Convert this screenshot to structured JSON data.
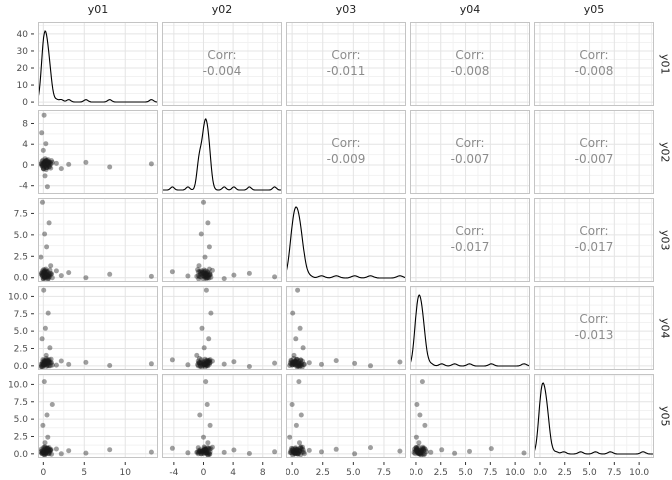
{
  "chart_data": {
    "type": "scatter_matrix",
    "diagonal": "density",
    "upper": "correlation_text",
    "lower": "scatter",
    "corr_label": "Corr:",
    "variables": [
      "y01",
      "y02",
      "y03",
      "y04",
      "y05"
    ],
    "cols": [
      {
        "name": "y01",
        "range": [
          -0.65,
          14.0
        ],
        "ticks": [
          {
            "v": 0,
            "label": "0"
          },
          {
            "v": 5,
            "label": "5"
          },
          {
            "v": 10,
            "label": "10"
          }
        ]
      },
      {
        "name": "y02",
        "range": [
          -5.6,
          10.6
        ],
        "ticks": [
          {
            "v": -4,
            "label": "-4"
          },
          {
            "v": 0,
            "label": "0"
          },
          {
            "v": 4,
            "label": "4"
          },
          {
            "v": 8,
            "label": "8"
          }
        ]
      },
      {
        "name": "y03",
        "range": [
          -0.5,
          9.3
        ],
        "ticks": [
          {
            "v": 0,
            "label": "0.0"
          },
          {
            "v": 2.5,
            "label": "2.5"
          },
          {
            "v": 5,
            "label": "5.0"
          },
          {
            "v": 7.5,
            "label": "7.5"
          }
        ]
      },
      {
        "name": "y04",
        "range": [
          -0.6,
          11.5
        ],
        "ticks": [
          {
            "v": 0,
            "label": "0.0"
          },
          {
            "v": 2.5,
            "label": "2.5"
          },
          {
            "v": 5,
            "label": "5.0"
          },
          {
            "v": 7.5,
            "label": "7.5"
          },
          {
            "v": 10,
            "label": "10.0"
          }
        ]
      },
      {
        "name": "y05",
        "range": [
          -0.6,
          11.5
        ],
        "ticks": [
          {
            "v": 0,
            "label": "0.0"
          },
          {
            "v": 2.5,
            "label": "2.5"
          },
          {
            "v": 5,
            "label": "5.0"
          },
          {
            "v": 7.5,
            "label": "7.5"
          },
          {
            "v": 10,
            "label": "10.0"
          }
        ]
      }
    ],
    "rows": [
      {
        "name": "y01",
        "range": [
          -2.3,
          47.0
        ],
        "ticks": [
          {
            "v": 0,
            "label": "0"
          },
          {
            "v": 10,
            "label": "10"
          },
          {
            "v": 20,
            "label": "20"
          },
          {
            "v": 30,
            "label": "30"
          },
          {
            "v": 40,
            "label": "40"
          }
        ]
      },
      {
        "name": "y02",
        "range": [
          -5.6,
          10.6
        ],
        "ticks": [
          {
            "v": -4,
            "label": "-4"
          },
          {
            "v": 0,
            "label": "0"
          },
          {
            "v": 4,
            "label": "4"
          },
          {
            "v": 8,
            "label": "8"
          }
        ]
      },
      {
        "name": "y03",
        "range": [
          -0.5,
          9.3
        ],
        "ticks": [
          {
            "v": 0,
            "label": "0.0"
          },
          {
            "v": 2.5,
            "label": "2.5"
          },
          {
            "v": 5,
            "label": "5.0"
          },
          {
            "v": 7.5,
            "label": "7.5"
          }
        ]
      },
      {
        "name": "y04",
        "range": [
          -0.6,
          11.5
        ],
        "ticks": [
          {
            "v": 0,
            "label": "0.0"
          },
          {
            "v": 2.5,
            "label": "2.5"
          },
          {
            "v": 5,
            "label": "5.0"
          },
          {
            "v": 7.5,
            "label": "7.5"
          },
          {
            "v": 10,
            "label": "10.0"
          }
        ]
      },
      {
        "name": "y05",
        "range": [
          -0.6,
          11.5
        ],
        "ticks": [
          {
            "v": 0,
            "label": "0.0"
          },
          {
            "v": 2.5,
            "label": "2.5"
          },
          {
            "v": 5,
            "label": "5.0"
          },
          {
            "v": 7.5,
            "label": "7.5"
          },
          {
            "v": 10,
            "label": "10.0"
          }
        ]
      }
    ],
    "correlations": [
      {
        "row": 0,
        "col": 1,
        "value": "-0.004"
      },
      {
        "row": 0,
        "col": 2,
        "value": "-0.011"
      },
      {
        "row": 0,
        "col": 3,
        "value": "-0.008"
      },
      {
        "row": 0,
        "col": 4,
        "value": "-0.008"
      },
      {
        "row": 1,
        "col": 2,
        "value": "-0.009"
      },
      {
        "row": 1,
        "col": 3,
        "value": "-0.007"
      },
      {
        "row": 1,
        "col": 4,
        "value": "-0.007"
      },
      {
        "row": 2,
        "col": 3,
        "value": "-0.017"
      },
      {
        "row": 2,
        "col": 4,
        "value": "-0.017"
      },
      {
        "row": 3,
        "col": 4,
        "value": "-0.013"
      }
    ],
    "values": {
      "y01": [
        13.2,
        8.1,
        5.2,
        3.1,
        2.2,
        1.6,
        0.1,
        -0.2,
        0.3,
        0.0,
        0.5,
        0.2,
        -0.1,
        0.7,
        0.15,
        0.4,
        -0.3,
        0.9,
        0.05,
        0.6,
        0.25,
        -0.15,
        0.8,
        0.35,
        0.12,
        1.1,
        0.45,
        -0.05,
        0.55,
        0.2,
        0.65,
        0.3,
        -0.25,
        0.75,
        0.1,
        0.5,
        0.0,
        0.85,
        0.22,
        -0.12,
        0.4,
        0.18,
        0.95,
        0.05,
        0.6,
        0.28,
        -0.18,
        0.7,
        0.15,
        0.38,
        1.0,
        0.08,
        -0.08,
        0.52,
        0.32,
        0.62,
        0.02,
        0.42,
        0.12,
        0.72
      ],
      "y02": [
        0.2,
        -0.4,
        0.5,
        0.1,
        -0.7,
        0.3,
        9.6,
        6.2,
        4.1,
        2.8,
        -4.2,
        -2.1,
        0.0,
        0.6,
        -0.3,
        0.8,
        0.2,
        -0.6,
        0.4,
        1.0,
        -0.2,
        0.7,
        0.1,
        -0.9,
        0.3,
        0.5,
        -0.5,
        0.9,
        0.0,
        0.6,
        -0.1,
        0.8,
        0.25,
        -0.35,
        0.55,
        0.15,
        -0.65,
        0.45,
        1.2,
        0.05,
        -0.45,
        0.65,
        0.2,
        -0.8,
        0.35,
        0.75,
        -0.15,
        0.5,
        0.1,
        -0.55,
        0.85,
        0.3,
        -0.25,
        0.6,
        0.0,
        0.4,
        -0.7,
        0.9,
        0.15,
        -0.3
      ],
      "y03": [
        0.15,
        0.4,
        0.0,
        0.6,
        0.25,
        0.8,
        0.1,
        0.5,
        0.3,
        -0.1,
        0.7,
        0.2,
        8.8,
        6.4,
        5.1,
        3.6,
        2.4,
        1.4,
        0.45,
        0.05,
        0.65,
        0.3,
        0.9,
        0.15,
        0.55,
        0.0,
        0.75,
        0.35,
        -0.2,
        0.6,
        0.2,
        1.0,
        0.4,
        0.1,
        0.7,
        0.28,
        -0.15,
        0.5,
        0.85,
        0.22,
        0.62,
        0.05,
        0.38,
        0.95,
        0.18,
        -0.05,
        0.58,
        0.32,
        0.72,
        0.12,
        0.48,
        0.02,
        0.82,
        0.25,
        0.52,
        -0.1,
        0.68,
        0.35,
        0.08,
        0.42
      ],
      "y04": [
        0.3,
        0.05,
        0.5,
        0.2,
        0.7,
        0.1,
        0.4,
        -0.1,
        0.6,
        0.25,
        0.85,
        0.15,
        0.55,
        0.0,
        0.35,
        0.75,
        0.2,
        0.45,
        10.9,
        7.6,
        5.4,
        3.9,
        2.6,
        1.5,
        0.65,
        0.1,
        0.4,
        0.9,
        0.05,
        0.3,
        0.6,
        0.22,
        -0.15,
        0.5,
        0.8,
        0.12,
        0.42,
        0.02,
        0.68,
        0.28,
        -0.08,
        0.52,
        0.95,
        0.18,
        0.38,
        0.72,
        0.08,
        0.58,
        0.25,
        1.05,
        0.45,
        0.15,
        -0.2,
        0.62,
        0.32,
        0.78,
        0.0,
        0.48,
        0.2,
        0.88
      ],
      "y05": [
        0.25,
        0.6,
        0.1,
        0.45,
        0.0,
        0.7,
        0.3,
        0.05,
        0.55,
        0.2,
        0.8,
        0.15,
        0.4,
        0.9,
        0.0,
        0.65,
        0.28,
        0.5,
        0.12,
        0.75,
        0.35,
        0.08,
        0.58,
        0.22,
        10.4,
        7.1,
        5.6,
        4.1,
        2.4,
        1.6,
        0.48,
        0.02,
        0.68,
        0.3,
        -0.12,
        0.85,
        0.18,
        0.52,
        0.95,
        0.1,
        0.38,
        -0.2,
        0.62,
        0.25,
        0.05,
        0.78,
        0.42,
        0.15,
        1.0,
        0.32,
        -0.05,
        0.55,
        0.2,
        0.72,
        0.08,
        0.45,
        0.88,
        0.28,
        0.6,
        0.0
      ]
    },
    "style": {
      "background": "#ffffff",
      "panel_background": "#ffffff",
      "panel_border": "#c4c4c4",
      "grid_major": "#e4e4e4",
      "grid_minor": "#f2f2f2",
      "point_color": "#1a1a1a",
      "point_opacity": 0.42,
      "point_radius": 2.5,
      "density_color": "#000000",
      "corr_text_color": "#8c8c8c",
      "axis_text_color": "#4d4d4d",
      "strip_text_color": "#1f1f1f",
      "tick_color": "#333333"
    }
  }
}
